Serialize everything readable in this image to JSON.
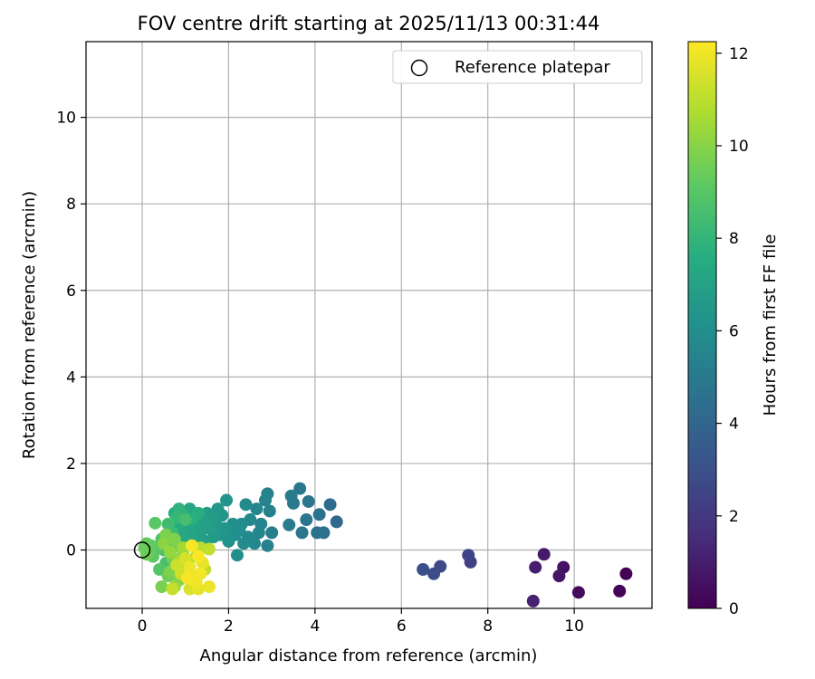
{
  "chart_data": {
    "type": "scatter",
    "title": "FOV centre drift starting at 2025/11/13 00:31:44",
    "xlabel": "Angular distance from reference (arcmin)",
    "ylabel": "Rotation from reference (arcmin)",
    "xlim": [
      -1.3,
      11.8
    ],
    "ylim": [
      -1.35,
      11.75
    ],
    "xticks": [
      0,
      2,
      4,
      6,
      8,
      10
    ],
    "yticks": [
      0,
      2,
      4,
      6,
      8,
      10
    ],
    "grid": true,
    "legend": {
      "position": "top-right",
      "entries": [
        "Reference platepar"
      ]
    },
    "reference_point": {
      "label": "Reference platepar",
      "x": 0.0,
      "y": 0.0
    },
    "colorbar": {
      "label": "Hours from first FF file",
      "colormap": "viridis",
      "range": [
        0,
        12.25
      ],
      "ticks": [
        0,
        2,
        4,
        6,
        8,
        10,
        12
      ]
    },
    "series": [
      {
        "name": "FOV centre drift",
        "points": [
          {
            "x": 11.2,
            "y": -0.55,
            "t": 0.05
          },
          {
            "x": 11.05,
            "y": -0.95,
            "t": 0.15
          },
          {
            "x": 10.1,
            "y": -0.98,
            "t": 0.35
          },
          {
            "x": 9.75,
            "y": -0.4,
            "t": 0.55
          },
          {
            "x": 9.65,
            "y": -0.6,
            "t": 0.7
          },
          {
            "x": 9.3,
            "y": -0.1,
            "t": 0.85
          },
          {
            "x": 9.1,
            "y": -0.4,
            "t": 1.0
          },
          {
            "x": 9.05,
            "y": -1.18,
            "t": 1.15
          },
          {
            "x": 7.6,
            "y": -0.28,
            "t": 2.3
          },
          {
            "x": 7.55,
            "y": -0.12,
            "t": 2.45
          },
          {
            "x": 6.9,
            "y": -0.38,
            "t": 2.7
          },
          {
            "x": 6.75,
            "y": -0.55,
            "t": 2.85
          },
          {
            "x": 6.5,
            "y": -0.45,
            "t": 3.0
          },
          {
            "x": 4.5,
            "y": 0.65,
            "t": 4.1
          },
          {
            "x": 4.35,
            "y": 1.05,
            "t": 4.25
          },
          {
            "x": 4.2,
            "y": 0.4,
            "t": 4.4
          },
          {
            "x": 4.1,
            "y": 0.82,
            "t": 4.55
          },
          {
            "x": 4.05,
            "y": 0.4,
            "t": 4.6
          },
          {
            "x": 3.85,
            "y": 1.12,
            "t": 4.75
          },
          {
            "x": 3.8,
            "y": 0.7,
            "t": 4.8
          },
          {
            "x": 3.7,
            "y": 0.4,
            "t": 4.85
          },
          {
            "x": 3.65,
            "y": 1.42,
            "t": 4.9
          },
          {
            "x": 3.5,
            "y": 1.08,
            "t": 5.0
          },
          {
            "x": 3.45,
            "y": 1.25,
            "t": 5.05
          },
          {
            "x": 3.4,
            "y": 0.58,
            "t": 5.1
          },
          {
            "x": 3.0,
            "y": 0.4,
            "t": 5.25
          },
          {
            "x": 2.95,
            "y": 0.9,
            "t": 5.3
          },
          {
            "x": 2.9,
            "y": 1.3,
            "t": 5.35
          },
          {
            "x": 2.9,
            "y": 0.1,
            "t": 5.4
          },
          {
            "x": 2.85,
            "y": 1.15,
            "t": 5.45
          },
          {
            "x": 2.75,
            "y": 0.6,
            "t": 5.5
          },
          {
            "x": 2.7,
            "y": 0.4,
            "t": 5.55
          },
          {
            "x": 2.65,
            "y": 0.95,
            "t": 5.6
          },
          {
            "x": 2.6,
            "y": 0.15,
            "t": 5.65
          },
          {
            "x": 2.5,
            "y": 0.7,
            "t": 5.7
          },
          {
            "x": 2.45,
            "y": 0.3,
            "t": 5.75
          },
          {
            "x": 2.4,
            "y": 1.05,
            "t": 5.8
          },
          {
            "x": 2.35,
            "y": 0.15,
            "t": 5.85
          },
          {
            "x": 2.3,
            "y": 0.6,
            "t": 5.9
          },
          {
            "x": 2.25,
            "y": 0.45,
            "t": 5.95
          },
          {
            "x": 2.2,
            "y": -0.12,
            "t": 6.0
          },
          {
            "x": 2.15,
            "y": 0.35,
            "t": 6.05
          },
          {
            "x": 2.1,
            "y": 0.6,
            "t": 6.1
          },
          {
            "x": 2.05,
            "y": 0.45,
            "t": 6.15
          },
          {
            "x": 2.0,
            "y": 0.2,
            "t": 6.2
          },
          {
            "x": 1.95,
            "y": 1.15,
            "t": 6.3
          },
          {
            "x": 1.9,
            "y": 0.5,
            "t": 6.35
          },
          {
            "x": 1.85,
            "y": 0.8,
            "t": 6.4
          },
          {
            "x": 1.8,
            "y": 0.35,
            "t": 6.45
          },
          {
            "x": 1.75,
            "y": 0.95,
            "t": 6.5
          },
          {
            "x": 1.7,
            "y": 0.6,
            "t": 6.55
          },
          {
            "x": 1.65,
            "y": 0.3,
            "t": 6.6
          },
          {
            "x": 1.6,
            "y": 0.75,
            "t": 6.65
          },
          {
            "x": 1.55,
            "y": 0.5,
            "t": 6.7
          },
          {
            "x": 1.5,
            "y": 0.85,
            "t": 6.75
          },
          {
            "x": 1.45,
            "y": 0.2,
            "t": 6.8
          },
          {
            "x": 1.4,
            "y": 0.6,
            "t": 6.85
          },
          {
            "x": 1.35,
            "y": 0.4,
            "t": 6.9
          },
          {
            "x": 1.3,
            "y": 0.75,
            "t": 6.95
          },
          {
            "x": 1.25,
            "y": 0.15,
            "t": 7.0
          },
          {
            "x": 1.2,
            "y": 0.55,
            "t": 7.05
          },
          {
            "x": 1.15,
            "y": 0.3,
            "t": 7.1
          },
          {
            "x": 1.1,
            "y": 0.95,
            "t": 7.15
          },
          {
            "x": 1.05,
            "y": 0.45,
            "t": 7.2
          },
          {
            "x": 1.0,
            "y": 0.2,
            "t": 7.25
          },
          {
            "x": 0.95,
            "y": 0.65,
            "t": 7.3
          },
          {
            "x": 0.9,
            "y": 0.35,
            "t": 7.35
          },
          {
            "x": 0.85,
            "y": 0.1,
            "t": 7.4
          },
          {
            "x": 0.8,
            "y": 0.55,
            "t": 7.45
          },
          {
            "x": 0.75,
            "y": 0.85,
            "t": 7.5
          },
          {
            "x": 1.3,
            "y": 0.85,
            "t": 7.6
          },
          {
            "x": 1.15,
            "y": 0.72,
            "t": 7.7
          },
          {
            "x": 0.95,
            "y": 0.82,
            "t": 7.8
          },
          {
            "x": 0.85,
            "y": 0.95,
            "t": 7.9
          },
          {
            "x": 0.8,
            "y": 0.75,
            "t": 8.1
          },
          {
            "x": 0.7,
            "y": 0.4,
            "t": 8.2
          },
          {
            "x": 0.65,
            "y": 0.15,
            "t": 8.3
          },
          {
            "x": 0.6,
            "y": 0.6,
            "t": 8.4
          },
          {
            "x": 1.0,
            "y": 0.7,
            "t": 8.5
          },
          {
            "x": 0.55,
            "y": -0.3,
            "t": 8.6
          },
          {
            "x": 0.5,
            "y": 0.0,
            "t": 8.7
          },
          {
            "x": 0.45,
            "y": 0.25,
            "t": 8.8
          },
          {
            "x": 0.4,
            "y": -0.45,
            "t": 8.9
          },
          {
            "x": 0.35,
            "y": 0.05,
            "t": 9.0
          },
          {
            "x": 0.3,
            "y": 0.62,
            "t": 9.1
          },
          {
            "x": 0.25,
            "y": -0.15,
            "t": 9.15
          },
          {
            "x": 0.2,
            "y": 0.1,
            "t": 9.2
          },
          {
            "x": 0.15,
            "y": -0.05,
            "t": 9.3
          },
          {
            "x": 0.1,
            "y": 0.15,
            "t": 9.35
          },
          {
            "x": 0.05,
            "y": 0.05,
            "t": 9.4
          },
          {
            "x": 0.1,
            "y": -0.1,
            "t": 9.45
          },
          {
            "x": 0.6,
            "y": -0.6,
            "t": 9.5
          },
          {
            "x": 0.7,
            "y": -0.2,
            "t": 9.55
          },
          {
            "x": 0.8,
            "y": 0.1,
            "t": 9.6
          },
          {
            "x": 0.9,
            "y": -0.4,
            "t": 9.65
          },
          {
            "x": 0.45,
            "y": -0.85,
            "t": 9.7
          },
          {
            "x": 0.55,
            "y": 0.35,
            "t": 9.75
          },
          {
            "x": 0.65,
            "y": -0.5,
            "t": 9.8
          },
          {
            "x": 0.75,
            "y": 0.25,
            "t": 9.85
          },
          {
            "x": 0.85,
            "y": -0.7,
            "t": 9.9
          },
          {
            "x": 0.95,
            "y": -0.1,
            "t": 9.95
          },
          {
            "x": 1.05,
            "y": -0.55,
            "t": 10.0
          },
          {
            "x": 0.5,
            "y": 0.15,
            "t": 10.1
          },
          {
            "x": 0.65,
            "y": -0.05,
            "t": 10.2
          },
          {
            "x": 0.75,
            "y": -0.85,
            "t": 10.3
          },
          {
            "x": 0.85,
            "y": -0.25,
            "t": 10.4
          },
          {
            "x": 0.95,
            "y": 0.05,
            "t": 10.5
          },
          {
            "x": 1.05,
            "y": -0.35,
            "t": 10.6
          },
          {
            "x": 1.15,
            "y": -0.8,
            "t": 10.7
          },
          {
            "x": 1.25,
            "y": -0.15,
            "t": 10.8
          },
          {
            "x": 1.35,
            "y": 0.05,
            "t": 10.9
          },
          {
            "x": 1.45,
            "y": -0.45,
            "t": 11.0
          },
          {
            "x": 1.55,
            "y": 0.02,
            "t": 11.1
          },
          {
            "x": 0.7,
            "y": -0.9,
            "t": 11.2
          },
          {
            "x": 0.8,
            "y": -0.35,
            "t": 11.3
          },
          {
            "x": 0.9,
            "y": -0.55,
            "t": 11.4
          },
          {
            "x": 1.0,
            "y": -0.2,
            "t": 11.5
          },
          {
            "x": 1.1,
            "y": -0.9,
            "t": 11.6
          },
          {
            "x": 1.2,
            "y": -0.6,
            "t": 11.7
          },
          {
            "x": 1.3,
            "y": -0.9,
            "t": 11.8
          },
          {
            "x": 1.4,
            "y": -0.3,
            "t": 11.85
          },
          {
            "x": 1.55,
            "y": -0.85,
            "t": 11.9
          },
          {
            "x": 1.1,
            "y": -0.4,
            "t": 11.95
          },
          {
            "x": 1.25,
            "y": -0.75,
            "t": 12.0
          },
          {
            "x": 1.35,
            "y": -0.55,
            "t": 12.05
          },
          {
            "x": 1.15,
            "y": 0.1,
            "t": 12.1
          },
          {
            "x": 1.05,
            "y": -0.65,
            "t": 12.15
          },
          {
            "x": 1.3,
            "y": -0.15,
            "t": 12.2
          }
        ]
      }
    ]
  }
}
